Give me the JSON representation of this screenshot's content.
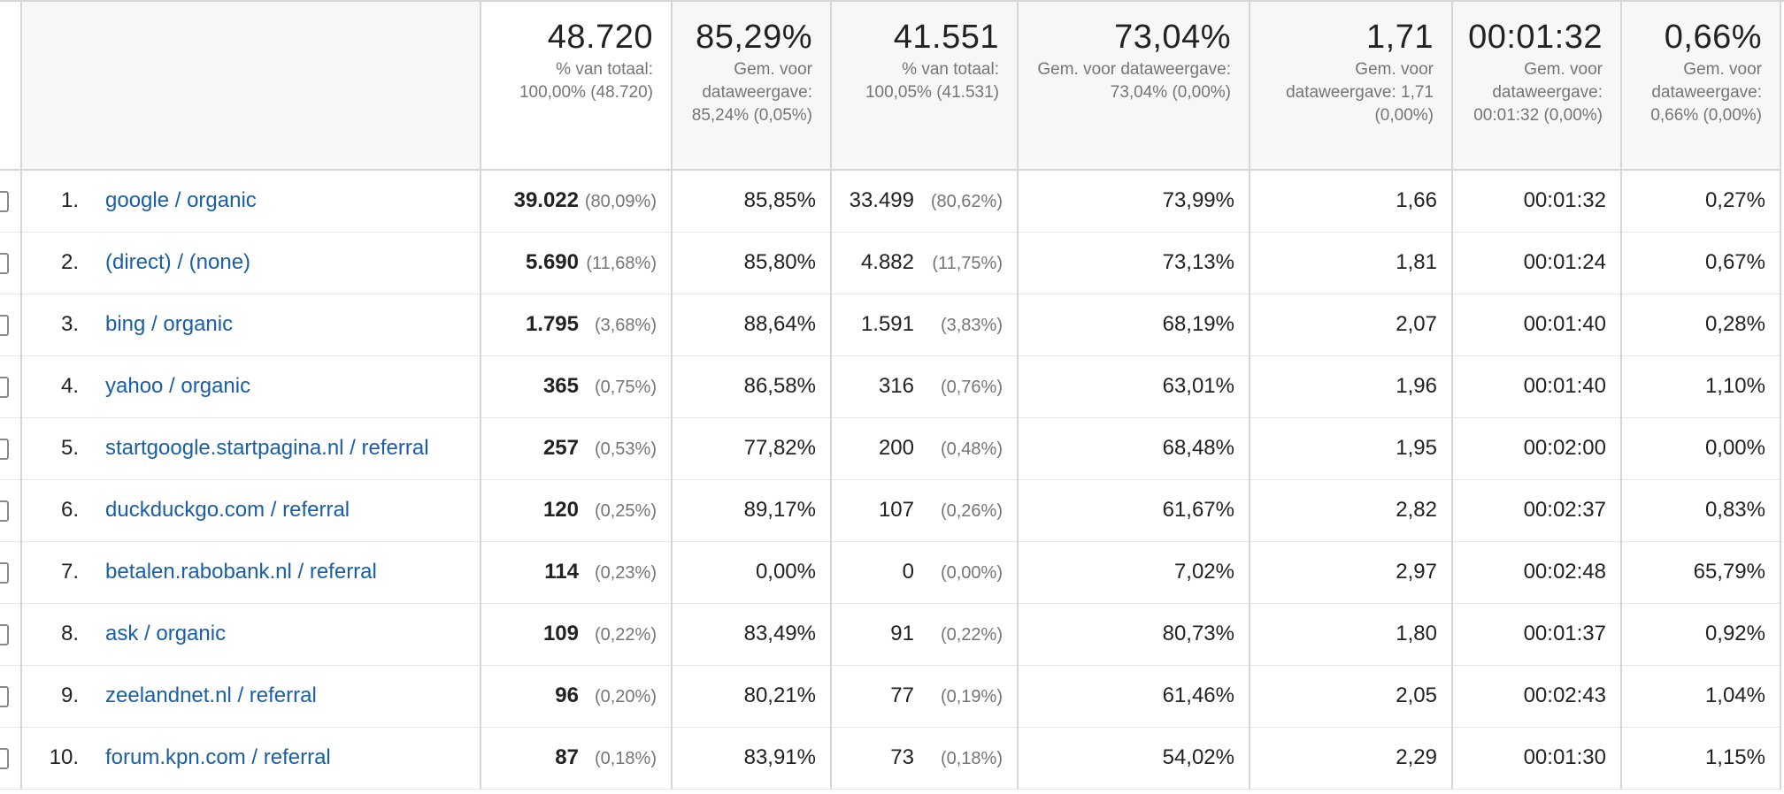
{
  "header": {
    "sessions": {
      "value": "48.720",
      "sub": "% van totaal: 100,00% (48.720)"
    },
    "pct_new": {
      "value": "85,29%",
      "sub": "Gem. voor dataweergave: 85,24% (0,05%)"
    },
    "new_users": {
      "value": "41.551",
      "sub": "% van totaal: 100,05% (41.531)"
    },
    "bounce": {
      "value": "73,04%",
      "sub": "Gem. voor dataweergave: 73,04% (0,00%)"
    },
    "pages": {
      "value": "1,71",
      "sub": "Gem. voor dataweergave: 1,71 (0,00%)"
    },
    "duration": {
      "value": "00:01:32",
      "sub": "Gem. voor dataweergave: 00:01:32 (0,00%)"
    },
    "conv": {
      "value": "0,66%",
      "sub": "Gem. voor dataweergave: 0,66% (0,00%)"
    }
  },
  "rows": [
    {
      "index": "1.",
      "source": "google / organic",
      "sessions": "39.022",
      "sessions_pct": "(80,09%)",
      "pct_new": "85,85%",
      "new_users": "33.499",
      "new_users_pct": "(80,62%)",
      "bounce": "73,99%",
      "pages": "1,66",
      "duration": "00:01:32",
      "conv": "0,27%"
    },
    {
      "index": "2.",
      "source": "(direct) / (none)",
      "sessions": "5.690",
      "sessions_pct": "(11,68%)",
      "pct_new": "85,80%",
      "new_users": "4.882",
      "new_users_pct": "(11,75%)",
      "bounce": "73,13%",
      "pages": "1,81",
      "duration": "00:01:24",
      "conv": "0,67%"
    },
    {
      "index": "3.",
      "source": "bing / organic",
      "sessions": "1.795",
      "sessions_pct": "(3,68%)",
      "pct_new": "88,64%",
      "new_users": "1.591",
      "new_users_pct": "(3,83%)",
      "bounce": "68,19%",
      "pages": "2,07",
      "duration": "00:01:40",
      "conv": "0,28%"
    },
    {
      "index": "4.",
      "source": "yahoo / organic",
      "sessions": "365",
      "sessions_pct": "(0,75%)",
      "pct_new": "86,58%",
      "new_users": "316",
      "new_users_pct": "(0,76%)",
      "bounce": "63,01%",
      "pages": "1,96",
      "duration": "00:01:40",
      "conv": "1,10%"
    },
    {
      "index": "5.",
      "source": "startgoogle.startpagina.nl / referral",
      "sessions": "257",
      "sessions_pct": "(0,53%)",
      "pct_new": "77,82%",
      "new_users": "200",
      "new_users_pct": "(0,48%)",
      "bounce": "68,48%",
      "pages": "1,95",
      "duration": "00:02:00",
      "conv": "0,00%"
    },
    {
      "index": "6.",
      "source": "duckduckgo.com / referral",
      "sessions": "120",
      "sessions_pct": "(0,25%)",
      "pct_new": "89,17%",
      "new_users": "107",
      "new_users_pct": "(0,26%)",
      "bounce": "61,67%",
      "pages": "2,82",
      "duration": "00:02:37",
      "conv": "0,83%"
    },
    {
      "index": "7.",
      "source": "betalen.rabobank.nl / referral",
      "sessions": "114",
      "sessions_pct": "(0,23%)",
      "pct_new": "0,00%",
      "new_users": "0",
      "new_users_pct": "(0,00%)",
      "bounce": "7,02%",
      "pages": "2,97",
      "duration": "00:02:48",
      "conv": "65,79%"
    },
    {
      "index": "8.",
      "source": "ask / organic",
      "sessions": "109",
      "sessions_pct": "(0,22%)",
      "pct_new": "83,49%",
      "new_users": "91",
      "new_users_pct": "(0,22%)",
      "bounce": "80,73%",
      "pages": "1,80",
      "duration": "00:01:37",
      "conv": "0,92%"
    },
    {
      "index": "9.",
      "source": "zeelandnet.nl / referral",
      "sessions": "96",
      "sessions_pct": "(0,20%)",
      "pct_new": "80,21%",
      "new_users": "77",
      "new_users_pct": "(0,19%)",
      "bounce": "61,46%",
      "pages": "2,05",
      "duration": "00:02:43",
      "conv": "1,04%"
    },
    {
      "index": "10.",
      "source": "forum.kpn.com / referral",
      "sessions": "87",
      "sessions_pct": "(0,18%)",
      "pct_new": "83,91%",
      "new_users": "73",
      "new_users_pct": "(0,18%)",
      "bounce": "54,02%",
      "pages": "2,29",
      "duration": "00:01:30",
      "conv": "1,15%"
    }
  ]
}
